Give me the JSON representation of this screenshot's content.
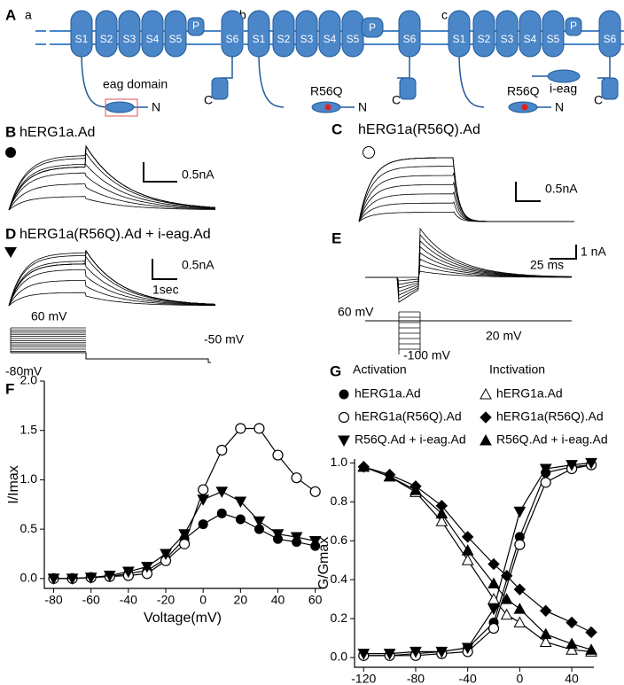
{
  "panels": {
    "A": {
      "label": "A",
      "sub": [
        "a",
        "b",
        "c"
      ],
      "segments": [
        "S1",
        "S2",
        "S3",
        "S4",
        "S5",
        "S6"
      ],
      "pore": "P",
      "eag_domain": "eag domain",
      "n_term": "N",
      "c_term": "C",
      "mutation": "R56Q",
      "ieag": "i-eag"
    },
    "B": {
      "label": "B",
      "title": "hERG1a.Ad",
      "scale_current": "0.5nA"
    },
    "C": {
      "label": "C",
      "title": "hERG1a(R56Q).Ad",
      "scale_current": "0.5nA"
    },
    "D": {
      "label": "D",
      "title": "hERG1a(R56Q).Ad + i-eag.Ad",
      "scale_current": "0.5nA",
      "scale_time": "1sec",
      "protocol": [
        "60 mV",
        "-50 mV",
        "-80mV"
      ]
    },
    "E": {
      "label": "E",
      "scale_current": "1 nA",
      "scale_time": "25 ms",
      "protocol": [
        "60 mV",
        "20 mV",
        "-100 mV"
      ]
    },
    "F": {
      "label": "F"
    },
    "G": {
      "label": "G",
      "legend_groups": [
        "Activation",
        "Inctivation"
      ]
    }
  },
  "chart_data": [
    {
      "type": "line",
      "xlabel": "Voltage(mV)",
      "ylabel": "I/Imax",
      "x": [
        -80,
        -70,
        -60,
        -50,
        -40,
        -30,
        -20,
        -10,
        0,
        10,
        20,
        30,
        40,
        50,
        60
      ],
      "xlim": [
        -85,
        63
      ],
      "xticks": [
        -80,
        -60,
        -40,
        -20,
        0,
        20,
        40,
        60
      ],
      "ylim": [
        -0.1,
        2.0
      ],
      "yticks": [
        {
          "value": 0,
          "label": "0.0"
        },
        0.5,
        {
          "value": 1,
          "label": "1.0"
        },
        1.5,
        {
          "value": 2,
          "label": "2.0"
        }
      ],
      "series": [
        {
          "marker": "circle-filled",
          "color": "#000000",
          "values": [
            0,
            0,
            0.01,
            0.02,
            0.05,
            0.08,
            0.2,
            0.4,
            0.55,
            0.66,
            0.6,
            0.5,
            0.4,
            0.37,
            0.33
          ]
        },
        {
          "marker": "circle-open",
          "color": "#000000",
          "values": [
            0,
            0,
            0.01,
            0.02,
            0.03,
            0.05,
            0.18,
            0.35,
            0.9,
            1.3,
            1.52,
            1.52,
            1.25,
            1.02,
            0.88
          ]
        },
        {
          "marker": "triangle-down",
          "color": "#000000",
          "values": [
            0,
            0,
            0.01,
            0.03,
            0.07,
            0.12,
            0.25,
            0.45,
            0.8,
            0.88,
            0.78,
            0.58,
            0.45,
            0.42,
            0.38
          ]
        }
      ]
    },
    {
      "type": "line",
      "xlabel": "Voltage(mV)",
      "ylabel": "G/Gmax",
      "xlim": [
        -127,
        57
      ],
      "xticks": [
        -120,
        -80,
        -40,
        0,
        40
      ],
      "ylim": [
        -0.05,
        1.02
      ],
      "yticks": [
        {
          "value": 0,
          "label": "0.0"
        },
        0.2,
        0.4,
        0.6,
        0.8,
        {
          "value": 1,
          "label": "1.0"
        }
      ],
      "series": [
        {
          "name": "hERG1a.Ad",
          "marker": "circle-filled",
          "color": "#000000",
          "x": [
            -120,
            -100,
            -80,
            -60,
            -40,
            -20,
            0,
            20,
            40,
            55
          ],
          "values": [
            0.01,
            0.01,
            0.02,
            0.03,
            0.05,
            0.18,
            0.62,
            0.95,
            0.98,
            0.99
          ]
        },
        {
          "name": "hERG1a(R56Q).Ad",
          "marker": "circle-open",
          "color": "#000000",
          "x": [
            -120,
            -100,
            -80,
            -60,
            -40,
            -20,
            0,
            20,
            40,
            55
          ],
          "values": [
            0.01,
            0.01,
            0.01,
            0.02,
            0.03,
            0.15,
            0.58,
            0.9,
            0.97,
            0.99
          ]
        },
        {
          "name": "R56Q.Ad + i-eag.Ad",
          "marker": "triangle-down",
          "color": "#000000",
          "x": [
            -120,
            -100,
            -80,
            -60,
            -40,
            -20,
            0,
            20,
            40,
            55
          ],
          "values": [
            0.02,
            0.02,
            0.03,
            0.03,
            0.05,
            0.25,
            0.75,
            0.97,
            0.99,
            1.0
          ]
        },
        {
          "name": "hERG1a.Ad",
          "marker": "triangle-open",
          "color": "#000000",
          "x": [
            -120,
            -100,
            -80,
            -60,
            -40,
            -20,
            -10,
            0,
            20,
            40,
            55
          ],
          "values": [
            0.98,
            0.93,
            0.85,
            0.7,
            0.5,
            0.3,
            0.22,
            0.18,
            0.08,
            0.04,
            0.03
          ]
        },
        {
          "name": "hERG1a(R56Q).Ad",
          "marker": "diamond",
          "color": "#000000",
          "x": [
            -120,
            -100,
            -80,
            -60,
            -40,
            -20,
            -10,
            0,
            20,
            40,
            55
          ],
          "values": [
            0.98,
            0.94,
            0.88,
            0.78,
            0.62,
            0.48,
            0.42,
            0.35,
            0.24,
            0.18,
            0.13
          ]
        },
        {
          "name": "R56Q.Ad + i-eag.Ad",
          "marker": "triangle-up",
          "color": "#000000",
          "x": [
            -120,
            -100,
            -80,
            -60,
            -40,
            -20,
            -10,
            0,
            20,
            40,
            55
          ],
          "values": [
            0.98,
            0.93,
            0.86,
            0.74,
            0.55,
            0.38,
            0.3,
            0.25,
            0.12,
            0.07,
            0.04
          ]
        }
      ]
    }
  ]
}
